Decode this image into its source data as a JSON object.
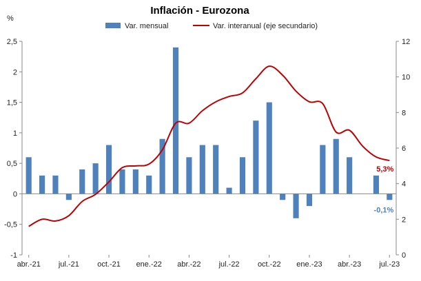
{
  "chart_data": {
    "type": "bar+line",
    "title": "Inflación - Eurozona",
    "ylabel_unit": "%",
    "legend": [
      {
        "label": "Var. mensual",
        "color": "#4f81bd",
        "kind": "bar"
      },
      {
        "label": "Var. interanual (eje secundario)",
        "color": "#c00000",
        "kind": "line"
      }
    ],
    "legend_position": "top",
    "x_tick_labels": [
      "abr.-21",
      "jul.-21",
      "oct.-21",
      "ene.-22",
      "abr.-22",
      "jul.-22",
      "oct.-22",
      "ene.-23",
      "abr.-23",
      "jul.-23"
    ],
    "y_left": {
      "min": -1,
      "max": 2.5,
      "ticks": [
        "-1",
        "-0,5",
        "0",
        "0,5",
        "1",
        "1,5",
        "2",
        "2,5"
      ]
    },
    "y_right": {
      "min": 0,
      "max": 12,
      "ticks": [
        "0",
        "2",
        "4",
        "6",
        "8",
        "10",
        "12"
      ]
    },
    "months": [
      "abr.-21",
      "may.-21",
      "jun.-21",
      "jul.-21",
      "ago.-21",
      "sep.-21",
      "oct.-21",
      "nov.-21",
      "dic.-21",
      "ene.-22",
      "feb.-22",
      "mar.-22",
      "abr.-22",
      "may.-22",
      "jun.-22",
      "jul.-22",
      "ago.-22",
      "sep.-22",
      "oct.-22",
      "nov.-22",
      "dic.-22",
      "ene.-23",
      "feb.-23",
      "mar.-23",
      "abr.-23",
      "may.-23",
      "jun.-23",
      "jul.-23"
    ],
    "series": [
      {
        "name": "Var. mensual",
        "axis": "left",
        "values": [
          0.6,
          0.3,
          0.3,
          -0.1,
          0.4,
          0.5,
          0.8,
          0.4,
          0.4,
          0.3,
          0.9,
          2.4,
          0.6,
          0.8,
          0.8,
          0.1,
          0.6,
          1.2,
          1.5,
          -0.1,
          -0.4,
          -0.2,
          0.8,
          0.9,
          0.6,
          0.0,
          0.3,
          -0.1
        ]
      },
      {
        "name": "Var. interanual (eje secundario)",
        "axis": "right",
        "values": [
          1.6,
          2.0,
          1.9,
          2.2,
          3.0,
          3.4,
          4.1,
          4.9,
          5.0,
          5.1,
          5.9,
          7.4,
          7.4,
          8.1,
          8.6,
          8.9,
          9.1,
          9.9,
          10.6,
          10.1,
          9.2,
          8.6,
          8.5,
          6.9,
          7.0,
          6.1,
          5.5,
          5.3
        ]
      }
    ],
    "annotations": [
      {
        "text": "5,3%",
        "color": "#c00000"
      },
      {
        "text": "-0,1%",
        "color": "#4f81bd"
      }
    ],
    "grid": false
  }
}
